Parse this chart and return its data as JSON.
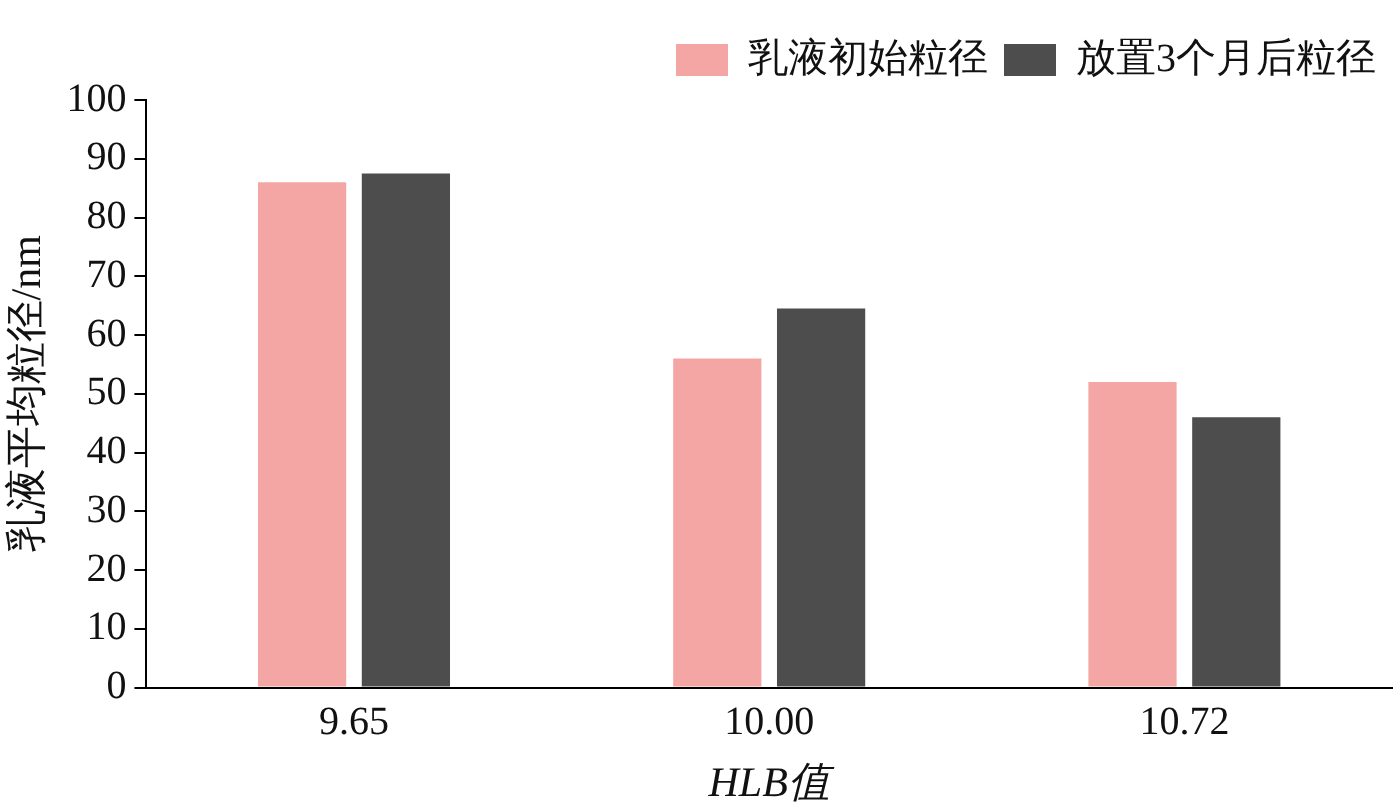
{
  "chart_data": {
    "type": "bar",
    "xlabel": "HLB值",
    "ylabel": "乳液平均粒径/nm",
    "categories": [
      "9.65",
      "10.00",
      "10.72"
    ],
    "series": [
      {
        "name": "乳液初始粒径",
        "color": "#f4a6a4",
        "values": [
          86,
          56,
          52
        ]
      },
      {
        "name": "放置3个月后粒径",
        "color": "#4d4d4d",
        "values": [
          87.5,
          64.5,
          46
        ]
      }
    ],
    "ylim": [
      0,
      100
    ],
    "yticks": [
      0,
      10,
      20,
      30,
      40,
      50,
      60,
      70,
      80,
      90,
      100
    ],
    "grid": false,
    "legend": "top right"
  }
}
